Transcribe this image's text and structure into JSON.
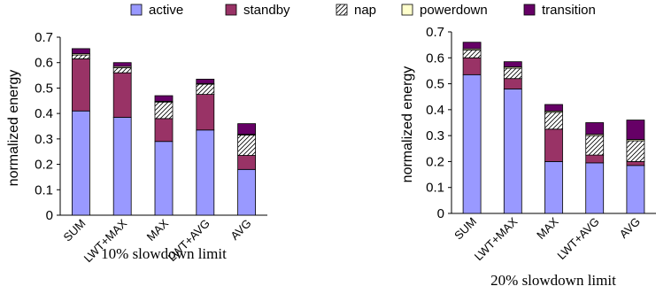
{
  "legend": [
    {
      "name": "active",
      "color": "#9999ff",
      "pattern": "solid"
    },
    {
      "name": "standby",
      "color": "#993366",
      "pattern": "solid"
    },
    {
      "name": "nap",
      "color": "#ffffff",
      "pattern": "hatch"
    },
    {
      "name": "powerdown",
      "color": "#ffffcc",
      "pattern": "solid"
    },
    {
      "name": "transition",
      "color": "#660066",
      "pattern": "solid"
    }
  ],
  "chart_data": [
    {
      "type": "bar",
      "stacked": true,
      "title": "10% slowdown limit",
      "ylabel": "normalized energy",
      "xlabel": "",
      "ylim": [
        0,
        0.7
      ],
      "yticks": [
        "0",
        "0.1",
        "0.2",
        "0.3",
        "0.4",
        "0.5",
        "0.6",
        "0.7"
      ],
      "categories": [
        "SUM",
        "LWT+MAX",
        "MAX",
        "LWT+AVG",
        "AVG"
      ],
      "series": [
        {
          "name": "active",
          "values": [
            0.41,
            0.385,
            0.29,
            0.335,
            0.18
          ]
        },
        {
          "name": "standby",
          "values": [
            0.205,
            0.175,
            0.09,
            0.14,
            0.055
          ]
        },
        {
          "name": "nap",
          "values": [
            0.015,
            0.02,
            0.065,
            0.04,
            0.08
          ]
        },
        {
          "name": "powerdown",
          "values": [
            0.005,
            0.005,
            0.003,
            0.003,
            0.003
          ]
        },
        {
          "name": "transition",
          "values": [
            0.02,
            0.015,
            0.022,
            0.017,
            0.042
          ]
        }
      ],
      "legend_position": "top",
      "grid": false
    },
    {
      "type": "bar",
      "stacked": true,
      "title": "20% slowdown limit",
      "ylabel": "normalized energy",
      "xlabel": "",
      "ylim": [
        0,
        0.7
      ],
      "yticks": [
        "0",
        "0.1",
        "0.2",
        "0.3",
        "0.4",
        "0.5",
        "0.6",
        "0.7"
      ],
      "categories": [
        "SUM",
        "LWT+MAX",
        "MAX",
        "LWT+AVG",
        "AVG"
      ],
      "series": [
        {
          "name": "active",
          "values": [
            0.535,
            0.48,
            0.2,
            0.195,
            0.185
          ]
        },
        {
          "name": "standby",
          "values": [
            0.065,
            0.04,
            0.125,
            0.03,
            0.015
          ]
        },
        {
          "name": "nap",
          "values": [
            0.03,
            0.04,
            0.065,
            0.075,
            0.08
          ]
        },
        {
          "name": "powerdown",
          "values": [
            0.005,
            0.005,
            0.005,
            0.005,
            0.005
          ]
        },
        {
          "name": "transition",
          "values": [
            0.025,
            0.02,
            0.025,
            0.045,
            0.075
          ]
        }
      ],
      "legend_position": "top",
      "grid": false
    }
  ]
}
